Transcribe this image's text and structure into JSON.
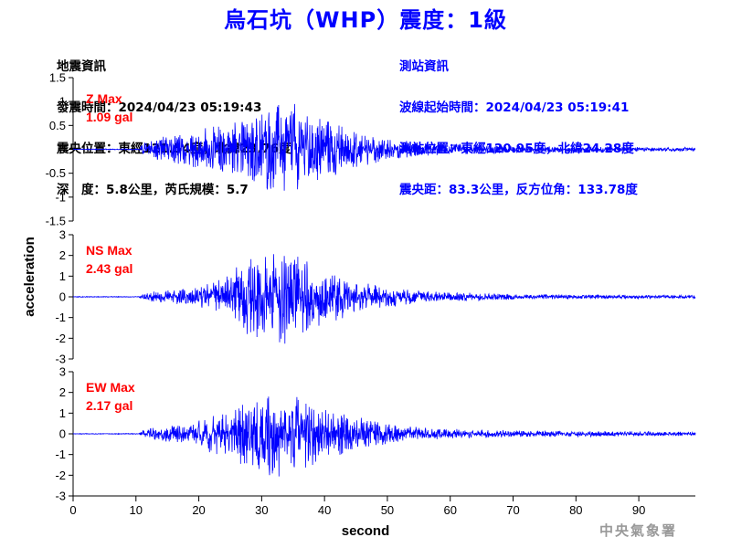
{
  "title": "烏石坑（WHP）震度：1級",
  "info_left": {
    "heading": "地震資訊",
    "time": "發震時間：2024/04/23 05:19:43",
    "location": "震央位置：東經121.54度，北緯23.76度",
    "depth": "深　度：5.8公里，芮氏規模：5.7"
  },
  "info_right": {
    "heading": "測站資訊",
    "wave_start": "波線起始時間：2024/04/23 05:19:41",
    "station_location": "測站位置：東經120.95度，北緯24.28度",
    "distance": "震央距：83.3公里，反方位角：133.78度"
  },
  "footer": {
    "credit": "中央氣象署"
  },
  "colors": {
    "trace": "#0000ff",
    "max_label": "#ff0000",
    "title": "#0000ff"
  },
  "chart_data": {
    "type": "line",
    "xlabel": "second",
    "ylabel": "acceleration",
    "xlim": [
      0,
      99
    ],
    "x_ticks": [
      0,
      10,
      20,
      30,
      40,
      50,
      60,
      70,
      80,
      90
    ],
    "x_tick_labels": [
      "0",
      "10",
      "20",
      "30",
      "40",
      "50",
      "60",
      "70",
      "80",
      "90"
    ],
    "grid": false,
    "panels": [
      {
        "name": "Z",
        "max_label": "Z Max",
        "max_value_label": "1.09 gal",
        "max_value": 1.09,
        "ylim": [
          -1.5,
          1.5
        ],
        "y_ticks": [
          -1.5,
          -1,
          -0.5,
          0,
          0.5,
          1,
          1.5
        ],
        "y_tick_labels": [
          "-1.5",
          "-1",
          "-0.5",
          "0",
          "0.5",
          "1",
          "1.5"
        ],
        "envelope": [
          [
            0,
            0.01
          ],
          [
            10.5,
            0.01
          ],
          [
            11,
            0.15
          ],
          [
            13,
            0.25
          ],
          [
            15,
            0.3
          ],
          [
            18,
            0.35
          ],
          [
            20,
            0.45
          ],
          [
            24,
            0.6
          ],
          [
            27,
            0.65
          ],
          [
            30,
            0.8
          ],
          [
            33,
            1.0
          ],
          [
            35,
            1.09
          ],
          [
            37,
            0.8
          ],
          [
            40,
            0.65
          ],
          [
            43,
            0.5
          ],
          [
            46,
            0.35
          ],
          [
            50,
            0.25
          ],
          [
            55,
            0.15
          ],
          [
            60,
            0.12
          ],
          [
            70,
            0.08
          ],
          [
            80,
            0.06
          ],
          [
            90,
            0.05
          ],
          [
            99,
            0.04
          ]
        ]
      },
      {
        "name": "NS",
        "max_label": "NS Max",
        "max_value_label": "2.43 gal",
        "max_value": 2.43,
        "ylim": [
          -3,
          3
        ],
        "y_ticks": [
          -3,
          -2,
          -1,
          0,
          1,
          2,
          3
        ],
        "y_tick_labels": [
          "-3",
          "-2",
          "-1",
          "0",
          "1",
          "2",
          "3"
        ],
        "envelope": [
          [
            0,
            0.02
          ],
          [
            10.5,
            0.02
          ],
          [
            11,
            0.2
          ],
          [
            14,
            0.3
          ],
          [
            18,
            0.4
          ],
          [
            22,
            0.7
          ],
          [
            25,
            1.3
          ],
          [
            28,
            1.9
          ],
          [
            31,
            2.2
          ],
          [
            34,
            2.43
          ],
          [
            36,
            2.0
          ],
          [
            40,
            1.4
          ],
          [
            44,
            0.9
          ],
          [
            48,
            0.6
          ],
          [
            52,
            0.4
          ],
          [
            58,
            0.25
          ],
          [
            65,
            0.18
          ],
          [
            75,
            0.12
          ],
          [
            85,
            0.1
          ],
          [
            99,
            0.08
          ]
        ]
      },
      {
        "name": "EW",
        "max_label": "EW Max",
        "max_value_label": "2.17 gal",
        "max_value": 2.17,
        "ylim": [
          -3,
          3
        ],
        "y_ticks": [
          -3,
          -2,
          -1,
          0,
          1,
          2,
          3
        ],
        "y_tick_labels": [
          "-3",
          "-2",
          "-1",
          "0",
          "1",
          "2",
          "3"
        ],
        "envelope": [
          [
            0,
            0.02
          ],
          [
            10.5,
            0.02
          ],
          [
            11,
            0.2
          ],
          [
            14,
            0.35
          ],
          [
            18,
            0.5
          ],
          [
            21,
            0.8
          ],
          [
            24,
            1.2
          ],
          [
            27,
            1.6
          ],
          [
            30,
            1.9
          ],
          [
            32,
            2.17
          ],
          [
            35,
            1.9
          ],
          [
            38,
            1.6
          ],
          [
            42,
            1.1
          ],
          [
            46,
            0.8
          ],
          [
            50,
            0.55
          ],
          [
            55,
            0.35
          ],
          [
            60,
            0.25
          ],
          [
            70,
            0.18
          ],
          [
            80,
            0.14
          ],
          [
            90,
            0.12
          ],
          [
            99,
            0.1
          ]
        ]
      }
    ]
  }
}
